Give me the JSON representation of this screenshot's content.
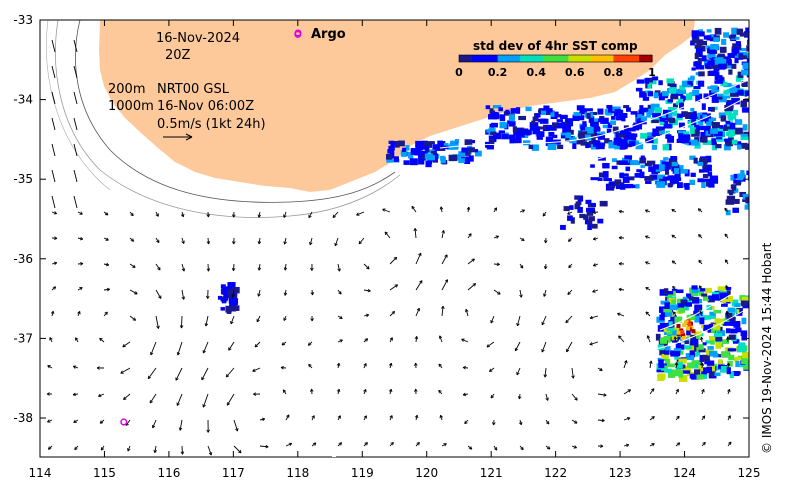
{
  "map": {
    "date_line": "16-Nov-2024",
    "time_line": "20Z",
    "argo_label": "Argo",
    "depth_200": "200m",
    "depth_1000": "1000m",
    "product": "NRT00 GSL",
    "product_time": "16-Nov 06:00Z",
    "scale_text": "0.5m/s (1kt 24h)",
    "credit": "© IMOS 19-Nov-2024 15:44 Hobart",
    "colorbar": {
      "title": "std dev of 4hr SST comp",
      "ticks": [
        "0",
        "0.2",
        "0.4",
        "0.6",
        "0.8",
        "1"
      ],
      "colors": [
        "#1a1a8c",
        "#0000ff",
        "#00a0ff",
        "#00e0c0",
        "#40e040",
        "#c8e000",
        "#ffc000",
        "#ff4000",
        "#a00000"
      ]
    },
    "x_ticks": [
      "114",
      "115",
      "116",
      "117",
      "118",
      "119",
      "120",
      "121",
      "122",
      "123",
      "124",
      "125"
    ],
    "y_ticks": [
      "-33",
      "-34",
      "-35",
      "-36",
      "-37",
      "-38"
    ],
    "land_color": "#fdc99b",
    "argo_color": "#e000e0",
    "argo_floats": [
      {
        "lon": 118.0,
        "lat": -33.18
      },
      {
        "lon": 115.3,
        "lat": -38.05
      }
    ]
  }
}
